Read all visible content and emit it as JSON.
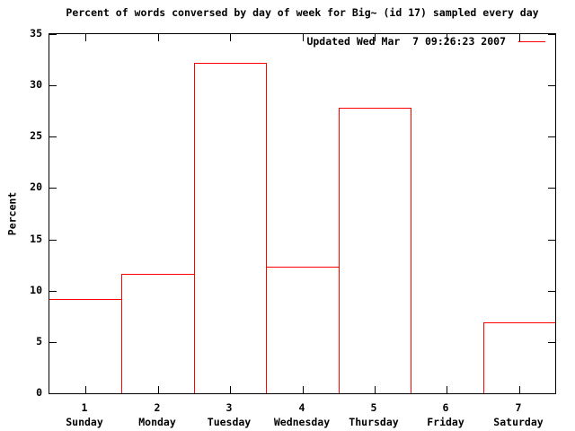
{
  "colors": {
    "series": "#ff0000",
    "axis": "#000000",
    "text": "#000000",
    "background": "#ffffff"
  },
  "legend": {
    "label": "Updated Wed Mar  7 09:26:23 2007"
  },
  "chart_data": {
    "type": "bar",
    "bar_style": "outline",
    "title": "Percent of words conversed by day of week for Big~ (id 17) sampled every day",
    "xlabel": "",
    "ylabel": "Percent",
    "ylim": [
      0,
      35
    ],
    "xlim": [
      0.5,
      7.5
    ],
    "yticks": [
      0,
      5,
      10,
      15,
      20,
      25,
      30,
      35
    ],
    "xticks": [
      1,
      2,
      3,
      4,
      5,
      6,
      7
    ],
    "x_tick_labels": [
      "1",
      "2",
      "3",
      "4",
      "5",
      "6",
      "7"
    ],
    "categories": [
      "Sunday",
      "Monday",
      "Tuesday",
      "Wednesday",
      "Thursday",
      "Friday",
      "Saturday"
    ],
    "values": [
      9.2,
      11.6,
      32.2,
      12.3,
      27.8,
      0,
      6.9
    ],
    "legend": [
      "Updated Wed Mar  7 09:26:23 2007"
    ],
    "legend_position": "top-right",
    "grid": false
  }
}
